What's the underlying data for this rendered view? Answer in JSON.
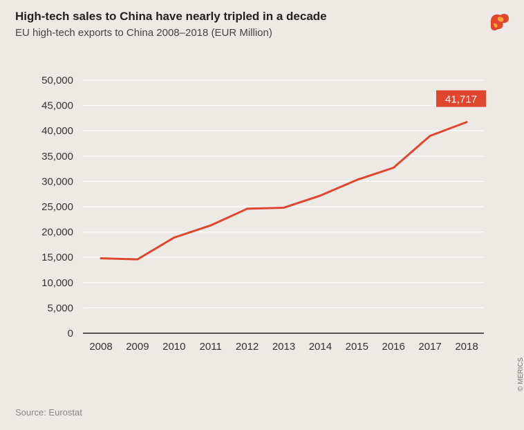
{
  "header": {
    "title": "High-tech sales to China have nearly tripled in a decade",
    "subtitle": "EU high-tech exports to China 2008–2018 (EUR Million)"
  },
  "footer": {
    "source": "Source: Eurostat",
    "copyright": "© MERICS"
  },
  "colors": {
    "line": "#e0452e",
    "grid": "#ffffff",
    "axis": "#222222",
    "background": "#ede9e5"
  },
  "chart_data": {
    "type": "line",
    "title": "High-tech sales to China have nearly tripled in a decade",
    "subtitle": "EU high-tech exports to China 2008–2018 (EUR Million)",
    "x": [
      "2008",
      "2009",
      "2010",
      "2011",
      "2012",
      "2013",
      "2014",
      "2015",
      "2016",
      "2017",
      "2018"
    ],
    "series": [
      {
        "values": [
          14800,
          14600,
          18900,
          21300,
          24600,
          24800,
          27200,
          30300,
          32700,
          39000,
          41717
        ]
      }
    ],
    "ylim": [
      0,
      50000
    ],
    "yticks": [
      0,
      5000,
      10000,
      15000,
      20000,
      25000,
      30000,
      35000,
      40000,
      45000,
      50000
    ],
    "ytick_labels": [
      "0",
      "5,000",
      "10,000",
      "15,000",
      "20,000",
      "25,000",
      "30,000",
      "35,000",
      "40,000",
      "45,000",
      "50,000"
    ],
    "grid": true,
    "legend": "none",
    "annotation": {
      "x": "2018",
      "text": "41,717"
    }
  }
}
